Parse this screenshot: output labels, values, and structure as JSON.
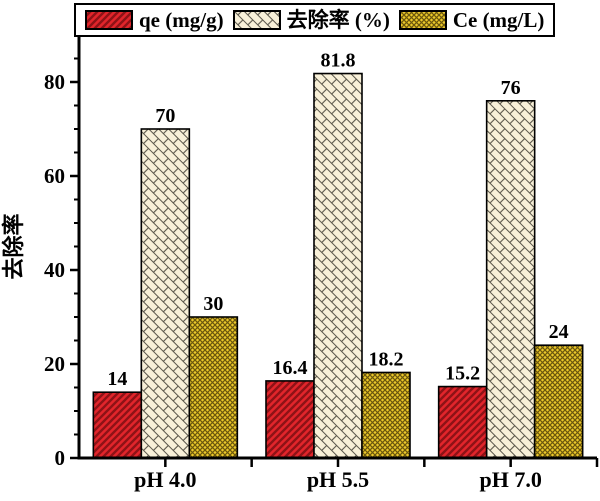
{
  "page": {
    "background": "#ffffff"
  },
  "legend": {
    "border_color": "#000000",
    "items": [
      {
        "label": "qe (mg/g)",
        "pattern": "red-diagonal-hatch",
        "fill": "#e2252b",
        "hatch_color": "#8e1216"
      },
      {
        "label": "去除率 (%)",
        "pattern": "cream-diagonal-weave",
        "fill": "#f8f0d8",
        "hatch_color": "#5a564a"
      },
      {
        "label": "Ce (mg/L)",
        "pattern": "gold-crosshatch",
        "fill": "#ecc929",
        "hatch_color": "#6b570e"
      }
    ]
  },
  "chart_data": {
    "type": "bar",
    "categories": [
      "pH 4.0",
      "pH 5.5",
      "pH 7.0"
    ],
    "series": [
      {
        "name": "qe (mg/g)",
        "values": [
          14,
          16.4,
          15.2
        ],
        "value_labels": [
          "14",
          "16.4",
          "15.2"
        ],
        "fill": "#e2252b",
        "hatch": "diagonal",
        "hatch_color": "#8e1216"
      },
      {
        "name": "去除率 (%)",
        "values": [
          70,
          81.8,
          76
        ],
        "value_labels": [
          "70",
          "81.8",
          "76"
        ],
        "fill": "#f8f0d8",
        "hatch": "weave",
        "hatch_color": "#5a564a"
      },
      {
        "name": "Ce (mg/L)",
        "values": [
          30,
          18.2,
          24
        ],
        "value_labels": [
          "30",
          "18.2",
          "24"
        ],
        "fill": "#ecc929",
        "hatch": "crosshatch",
        "hatch_color": "#6b570e"
      }
    ],
    "title": "",
    "xlabel": "",
    "ylabel": "去除率",
    "ylim": [
      0,
      90
    ],
    "yticks": [
      0,
      20,
      40,
      60,
      80
    ],
    "minor_tick_step": 5,
    "grid": false,
    "legend_position": "top",
    "axis_color": "#000000",
    "text_color": "#000000"
  }
}
